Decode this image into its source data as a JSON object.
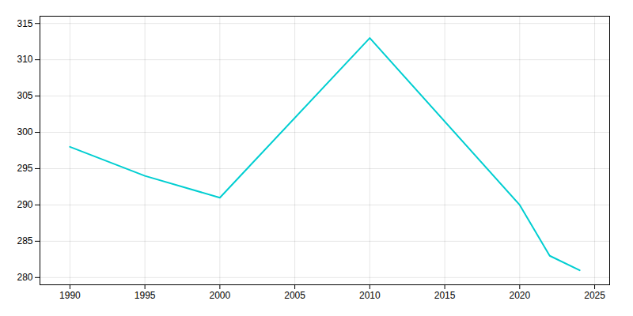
{
  "chart_data": {
    "type": "line",
    "x": [
      1990,
      1995,
      2000,
      2010,
      2020,
      2022,
      2024
    ],
    "values": [
      298,
      294,
      291,
      313,
      290,
      283,
      281
    ],
    "color": "#00CED1",
    "xlim": [
      1988,
      2026
    ],
    "ylim": [
      279,
      316
    ],
    "xticks": [
      1990,
      1995,
      2000,
      2005,
      2010,
      2015,
      2020,
      2025
    ],
    "yticks": [
      280,
      285,
      290,
      295,
      300,
      305,
      310,
      315
    ],
    "grid": true
  }
}
